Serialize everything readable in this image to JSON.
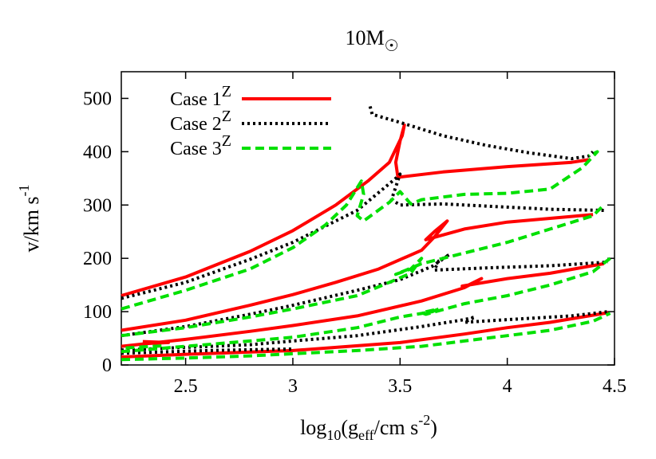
{
  "chart_data": {
    "type": "line",
    "title": "10M",
    "title_symbol": "☉",
    "xlabel": {
      "prefix": "log",
      "sub1": "10",
      "mid": "(g",
      "sub2": "eff",
      "suffix": "/cm s",
      "sup": "-2",
      "end": ")"
    },
    "ylabel": {
      "text": "v/km s",
      "sup": "-1"
    },
    "xlim": [
      2.2,
      4.5
    ],
    "ylim": [
      0,
      550
    ],
    "xticks": [
      2.5,
      3,
      3.5,
      4,
      4.5
    ],
    "xtick_labels": [
      "2.5",
      "3",
      "3.5",
      "4",
      "4.5"
    ],
    "yticks": [
      0,
      100,
      200,
      300,
      400,
      500
    ],
    "ytick_labels": [
      "0",
      "100",
      "200",
      "300",
      "400",
      "500"
    ],
    "grid": false,
    "legend_position": "top-left",
    "series": [
      {
        "name": "Case 1",
        "name_sup": "Z",
        "color": "#ff0000",
        "dash": "solid",
        "tracks": [
          [
            [
              2.2,
              130
            ],
            [
              2.5,
              165
            ],
            [
              2.8,
              213
            ],
            [
              3.0,
              252
            ],
            [
              3.2,
              300
            ],
            [
              3.35,
              345
            ],
            [
              3.45,
              380
            ],
            [
              3.51,
              430
            ],
            [
              3.52,
              450
            ],
            [
              3.5,
              420
            ],
            [
              3.48,
              380
            ],
            [
              3.49,
              352
            ],
            [
              3.7,
              362
            ],
            [
              4.0,
              372
            ],
            [
              4.3,
              380
            ],
            [
              4.38,
              385
            ]
          ],
          [
            [
              2.2,
              65
            ],
            [
              2.5,
              84
            ],
            [
              2.8,
              112
            ],
            [
              3.0,
              132
            ],
            [
              3.2,
              155
            ],
            [
              3.4,
              180
            ],
            [
              3.6,
              215
            ],
            [
              3.66,
              240
            ],
            [
              3.72,
              270
            ],
            [
              3.66,
              250
            ],
            [
              3.62,
              235
            ],
            [
              3.8,
              255
            ],
            [
              4.0,
              268
            ],
            [
              4.2,
              275
            ],
            [
              4.4,
              282
            ]
          ],
          [
            [
              2.2,
              35
            ],
            [
              2.5,
              48
            ],
            [
              2.8,
              63
            ],
            [
              3.0,
              74
            ],
            [
              3.3,
              92
            ],
            [
              3.6,
              120
            ],
            [
              3.8,
              145
            ],
            [
              3.88,
              162
            ],
            [
              3.82,
              150
            ],
            [
              3.79,
              148
            ],
            [
              4.0,
              162
            ],
            [
              4.2,
              172
            ],
            [
              4.45,
              190
            ]
          ],
          [
            [
              2.2,
              15
            ],
            [
              2.5,
              20
            ],
            [
              3.0,
              27
            ],
            [
              3.5,
              42
            ],
            [
              3.8,
              58
            ],
            [
              4.0,
              70
            ],
            [
              4.2,
              80
            ],
            [
              4.47,
              98
            ]
          ],
          [
            [
              2.3,
              44
            ],
            [
              2.42,
              42
            ],
            [
              2.3,
              40
            ]
          ]
        ]
      },
      {
        "name": "Case 2",
        "name_sup": "Z",
        "color": "#000000",
        "dash": "dotted",
        "tracks": [
          [
            [
              3.36,
              485
            ],
            [
              3.37,
              470
            ],
            [
              3.5,
              455
            ],
            [
              3.7,
              430
            ],
            [
              3.9,
              412
            ],
            [
              4.1,
              398
            ],
            [
              4.3,
              387
            ],
            [
              4.38,
              392
            ],
            [
              4.4,
              400
            ]
          ],
          [
            [
              2.2,
              125
            ],
            [
              2.5,
              155
            ],
            [
              2.8,
              198
            ],
            [
              3.0,
              230
            ],
            [
              3.2,
              270
            ],
            [
              3.3,
              290
            ],
            [
              3.48,
              350
            ],
            [
              3.5,
              358
            ],
            [
              3.46,
              310
            ],
            [
              3.5,
              300
            ],
            [
              3.7,
              302
            ],
            [
              3.9,
              298
            ],
            [
              4.2,
              292
            ],
            [
              4.45,
              290
            ]
          ],
          [
            [
              2.2,
              55
            ],
            [
              2.5,
              72
            ],
            [
              2.8,
              95
            ],
            [
              3.0,
              112
            ],
            [
              3.3,
              140
            ],
            [
              3.5,
              160
            ],
            [
              3.65,
              185
            ],
            [
              3.73,
              207
            ],
            [
              3.68,
              195
            ],
            [
              3.66,
              178
            ],
            [
              3.9,
              182
            ],
            [
              4.2,
              186
            ],
            [
              4.47,
              193
            ]
          ],
          [
            [
              2.2,
              28
            ],
            [
              2.5,
              33
            ],
            [
              2.8,
              38
            ],
            [
              3.0,
              45
            ],
            [
              3.3,
              55
            ],
            [
              3.6,
              72
            ],
            [
              3.8,
              85
            ],
            [
              3.85,
              90
            ],
            [
              3.8,
              80
            ],
            [
              4.0,
              85
            ],
            [
              4.3,
              92
            ],
            [
              4.47,
              100
            ]
          ],
          [
            [
              2.2,
              22
            ],
            [
              2.6,
              27
            ],
            [
              3.0,
              30
            ]
          ]
        ]
      },
      {
        "name": "Case 3",
        "name_sup": "Z",
        "color": "#00e000",
        "dash": "dashed",
        "tracks": [
          [
            [
              2.2,
              105
            ],
            [
              2.5,
              140
            ],
            [
              2.8,
              180
            ],
            [
              3.0,
              220
            ],
            [
              3.15,
              262
            ],
            [
              3.25,
              300
            ],
            [
              3.32,
              345
            ],
            [
              3.33,
              320
            ],
            [
              3.3,
              280
            ],
            [
              3.33,
              270
            ],
            [
              3.45,
              305
            ],
            [
              3.5,
              325
            ],
            [
              3.55,
              302
            ],
            [
              3.6,
              310
            ],
            [
              3.8,
              320
            ],
            [
              4.0,
              322
            ],
            [
              4.2,
              330
            ],
            [
              4.35,
              370
            ],
            [
              4.42,
              400
            ],
            [
              4.38,
              392
            ]
          ],
          [
            [
              2.2,
              55
            ],
            [
              2.5,
              70
            ],
            [
              2.8,
              90
            ],
            [
              3.0,
              105
            ],
            [
              3.3,
              130
            ],
            [
              3.45,
              155
            ],
            [
              3.55,
              172
            ],
            [
              3.6,
              200
            ],
            [
              3.55,
              180
            ],
            [
              3.48,
              170
            ],
            [
              3.6,
              190
            ],
            [
              3.8,
              210
            ],
            [
              4.0,
              230
            ],
            [
              4.2,
              255
            ],
            [
              4.4,
              280
            ],
            [
              4.45,
              300
            ]
          ],
          [
            [
              2.2,
              25
            ],
            [
              2.5,
              35
            ],
            [
              2.8,
              45
            ],
            [
              3.0,
              52
            ],
            [
              3.3,
              70
            ],
            [
              3.5,
              90
            ],
            [
              3.65,
              100
            ],
            [
              3.68,
              105
            ],
            [
              3.6,
              98
            ],
            [
              3.62,
              95
            ],
            [
              3.8,
              115
            ],
            [
              4.0,
              130
            ],
            [
              4.2,
              150
            ],
            [
              4.4,
              175
            ],
            [
              4.48,
              200
            ]
          ],
          [
            [
              2.2,
              10
            ],
            [
              2.5,
              13
            ],
            [
              2.8,
              17
            ],
            [
              3.0,
              21
            ],
            [
              3.3,
              27
            ],
            [
              3.6,
              35
            ],
            [
              3.8,
              45
            ],
            [
              4.0,
              55
            ],
            [
              4.2,
              65
            ],
            [
              4.4,
              82
            ],
            [
              4.48,
              97
            ]
          ],
          [
            [
              2.22,
              32
            ],
            [
              2.3,
              34
            ],
            [
              2.4,
              36
            ]
          ]
        ]
      }
    ]
  }
}
